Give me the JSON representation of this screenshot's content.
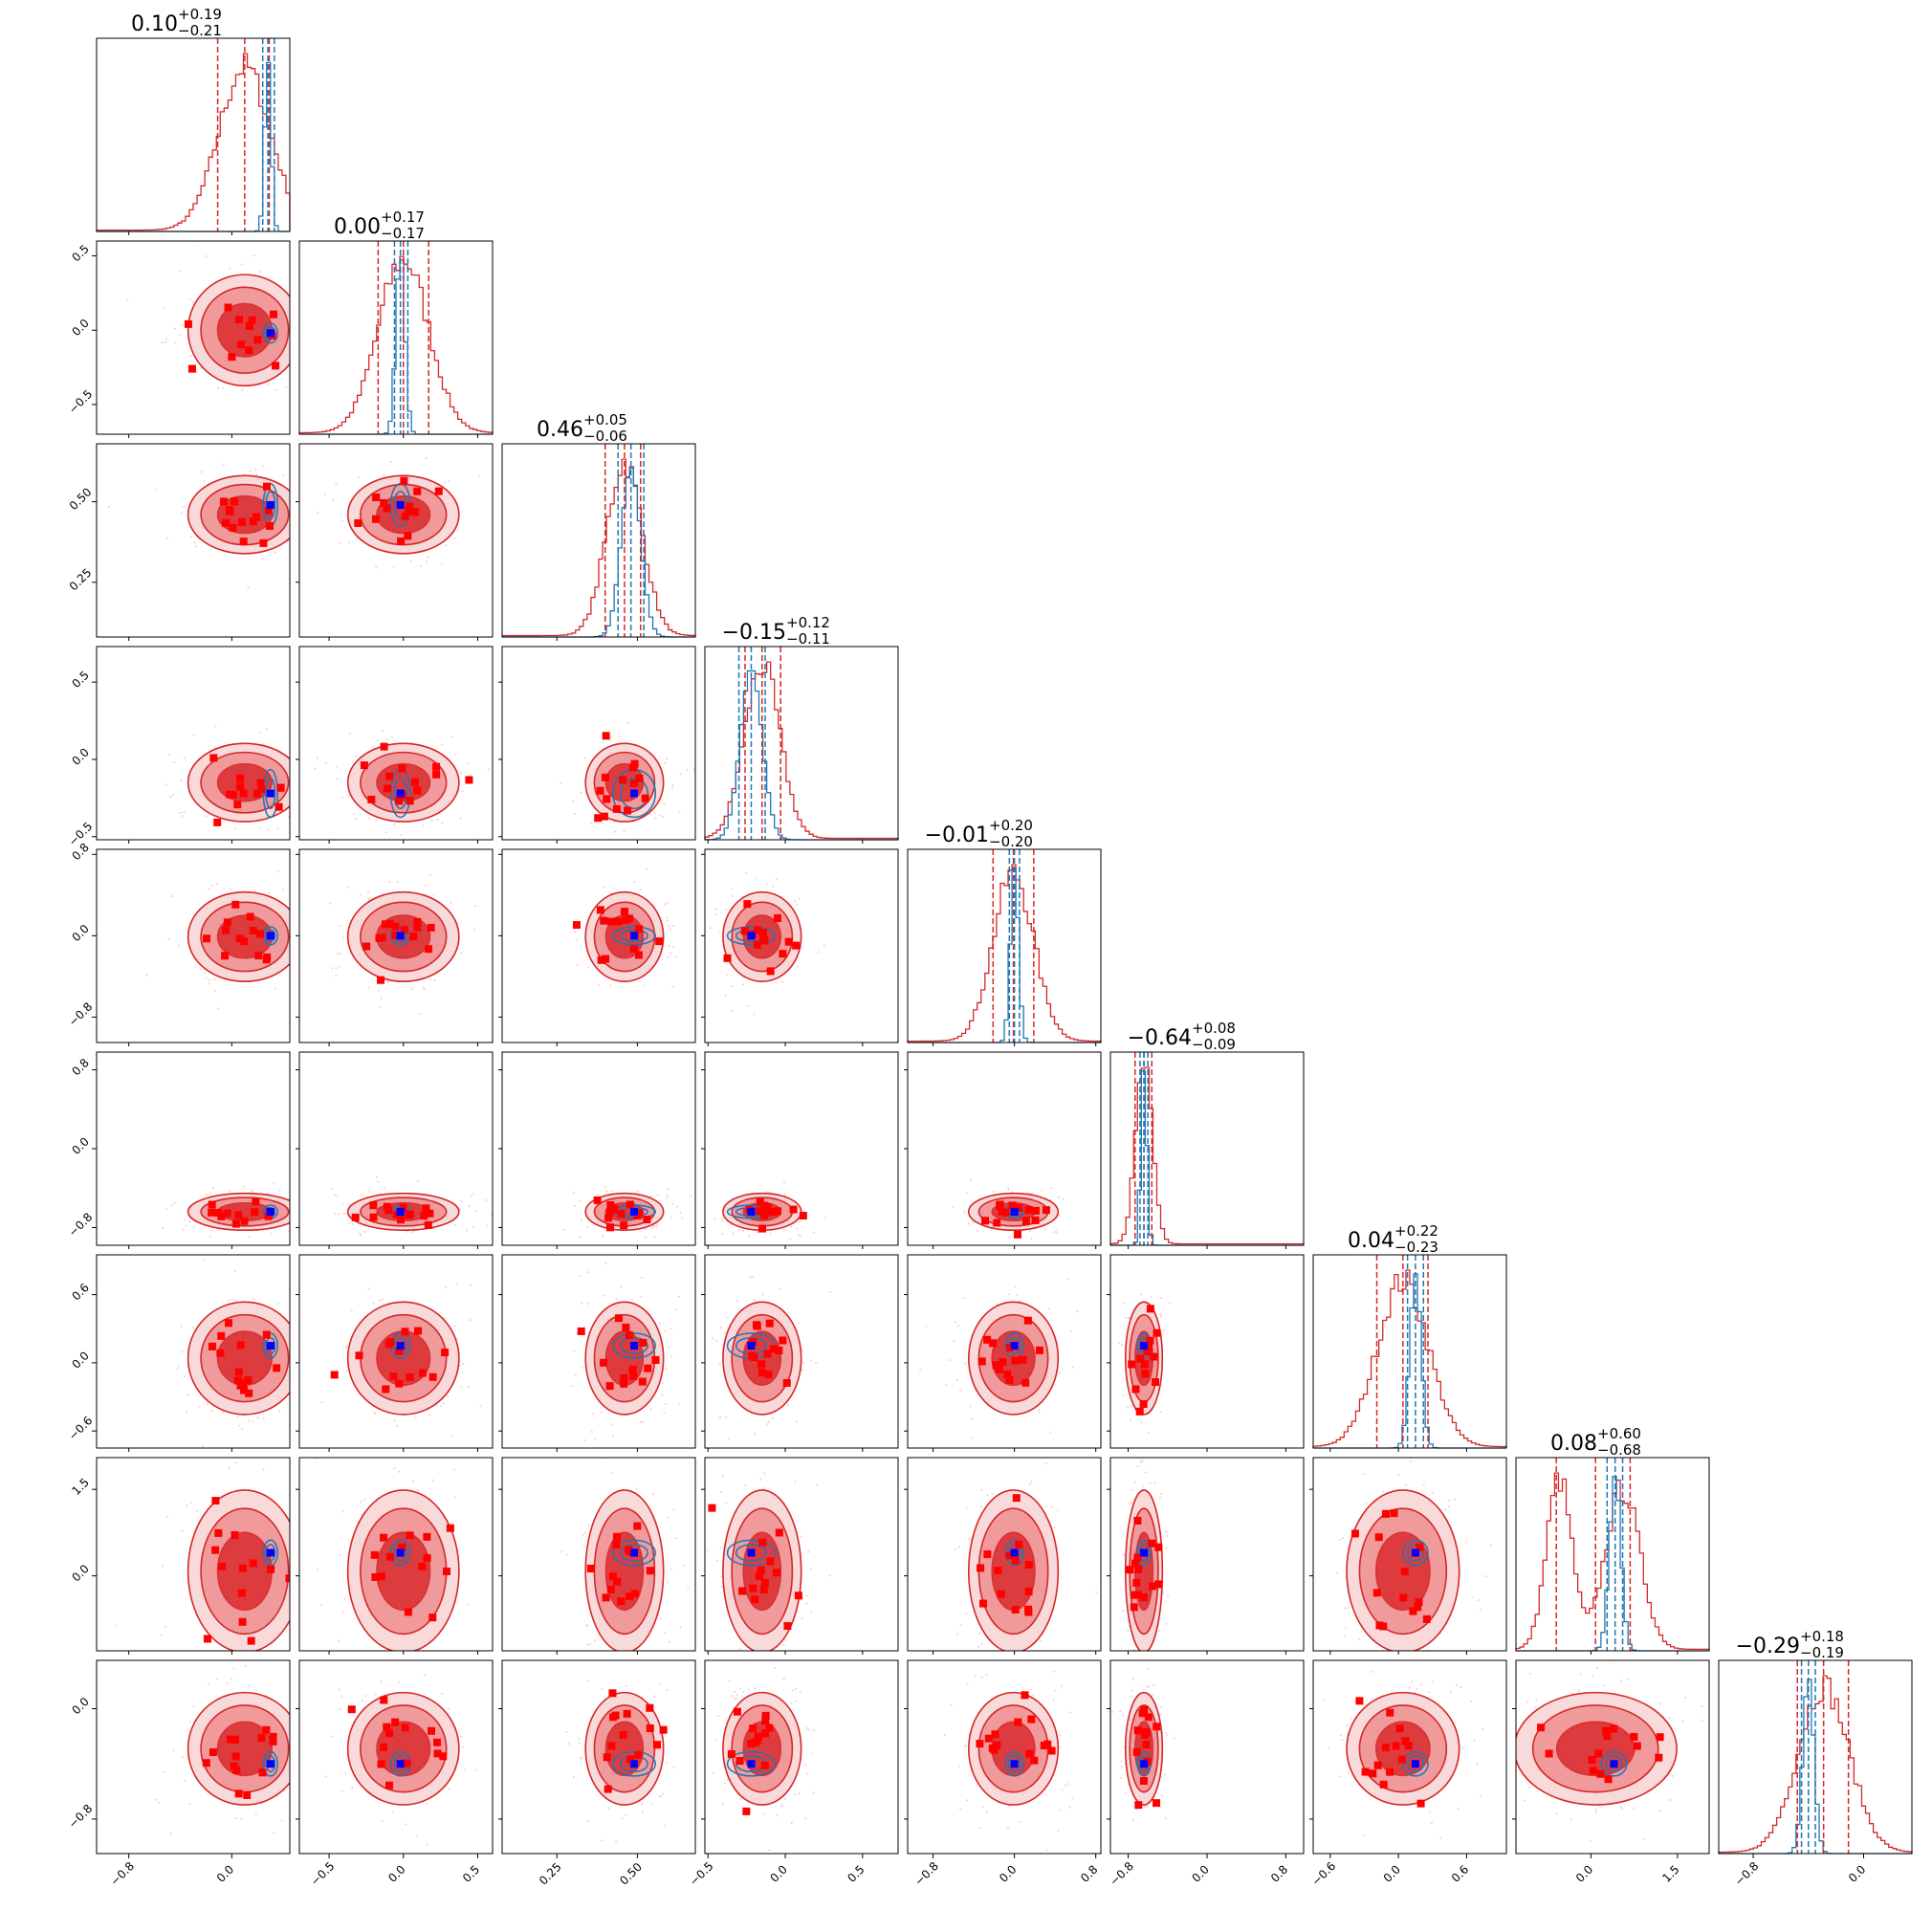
{
  "chart_data": {
    "type": "corner",
    "n_params": 9,
    "grid": false,
    "colors": {
      "primary": "#d62728",
      "secondary": "#1f77b4",
      "marker": "#ff0000",
      "truth": "#0000ff"
    },
    "params": [
      {
        "range": [
          -1.05,
          0.45
        ],
        "ticks": [
          -0.8,
          0.0
        ],
        "tick_labels": [
          "−0.8",
          "0.0"
        ],
        "median": 0.1,
        "plus": 0.19,
        "minus": 0.21,
        "title_main": "0.10",
        "title_plus": "+0.19",
        "title_minus": "−0.21",
        "quantiles": [
          -0.11,
          0.1,
          0.29
        ],
        "secondary_mean": 0.28,
        "secondary_sd": 0.025,
        "secondary_quantiles": [
          0.24,
          0.28,
          0.33
        ],
        "truth": 0.3
      },
      {
        "range": [
          -0.7,
          0.6
        ],
        "ticks": [
          -0.5,
          0.0,
          0.5
        ],
        "tick_labels": [
          "−0.5",
          "0.0",
          "0.5"
        ],
        "median": 0.0,
        "plus": 0.17,
        "minus": 0.17,
        "title_main": "0.00",
        "title_plus": "+0.17",
        "title_minus": "−0.17",
        "quantiles": [
          -0.17,
          0.0,
          0.17
        ],
        "secondary_mean": -0.02,
        "secondary_sd": 0.03,
        "secondary_quantiles": [
          -0.06,
          -0.02,
          0.03
        ],
        "truth": -0.02
      },
      {
        "range": [
          0.08,
          0.68
        ],
        "ticks": [
          0.25,
          0.5
        ],
        "tick_labels": [
          "0.25",
          "0.50"
        ],
        "median": 0.46,
        "plus": 0.05,
        "minus": 0.06,
        "title_main": "0.46",
        "title_plus": "+0.05",
        "title_minus": "−0.06",
        "quantiles": [
          0.4,
          0.46,
          0.51
        ],
        "secondary_mean": 0.48,
        "secondary_sd": 0.03,
        "secondary_quantiles": [
          0.44,
          0.48,
          0.52
        ],
        "truth": 0.49
      },
      {
        "range": [
          -0.52,
          0.73
        ],
        "ticks": [
          -0.5,
          0.0,
          0.5
        ],
        "tick_labels": [
          "−0.5",
          "0.0",
          "0.5"
        ],
        "median": -0.15,
        "plus": 0.12,
        "minus": 0.11,
        "title_main": "−0.15",
        "title_plus": "+0.12",
        "title_minus": "−0.11",
        "quantiles": [
          -0.26,
          -0.15,
          -0.03
        ],
        "secondary_mean": -0.22,
        "secondary_sd": 0.07,
        "secondary_quantiles": [
          -0.3,
          -0.22,
          -0.13
        ],
        "truth": -0.22
      },
      {
        "range": [
          -1.05,
          0.85
        ],
        "ticks": [
          -0.8,
          0.0,
          0.8
        ],
        "tick_labels": [
          "−0.8",
          "0.0",
          "0.8"
        ],
        "median": -0.01,
        "plus": 0.2,
        "minus": 0.2,
        "title_main": "−0.01",
        "title_plus": "+0.20",
        "title_minus": "−0.20",
        "quantiles": [
          -0.21,
          -0.01,
          0.19
        ],
        "secondary_mean": 0.0,
        "secondary_sd": 0.04,
        "secondary_quantiles": [
          -0.05,
          0.0,
          0.05
        ],
        "truth": 0.0
      },
      {
        "range": [
          -0.98,
          0.98
        ],
        "ticks": [
          -0.8,
          0.0,
          0.8
        ],
        "tick_labels": [
          "−0.8",
          "0.0",
          "0.8"
        ],
        "median": -0.64,
        "plus": 0.08,
        "minus": 0.09,
        "title_main": "−0.64",
        "title_plus": "+0.08",
        "title_minus": "−0.09",
        "quantiles": [
          -0.73,
          -0.64,
          -0.56
        ],
        "secondary_mean": -0.64,
        "secondary_sd": 0.03,
        "secondary_quantiles": [
          -0.68,
          -0.64,
          -0.6
        ],
        "truth": -0.64
      },
      {
        "range": [
          -0.75,
          0.95
        ],
        "ticks": [
          -0.6,
          0.0,
          0.6
        ],
        "tick_labels": [
          "−0.6",
          "0.0",
          "0.6"
        ],
        "median": 0.04,
        "plus": 0.22,
        "minus": 0.23,
        "title_main": "0.04",
        "title_plus": "+0.22",
        "title_minus": "−0.23",
        "quantiles": [
          -0.19,
          0.04,
          0.26
        ],
        "secondary_mean": 0.15,
        "secondary_sd": 0.05,
        "secondary_quantiles": [
          0.08,
          0.15,
          0.22
        ],
        "truth": 0.15
      },
      {
        "range": [
          -1.3,
          2.05
        ],
        "ticks": [
          0.0,
          1.5
        ],
        "tick_labels": [
          "0.0",
          "1.5"
        ],
        "median": 0.08,
        "plus": 0.6,
        "minus": 0.68,
        "title_main": "0.08",
        "title_plus": "+0.60",
        "title_minus": "−0.68",
        "quantiles": [
          -0.6,
          0.08,
          0.68
        ],
        "secondary_mean": 0.42,
        "secondary_sd": 0.1,
        "secondary_quantiles": [
          0.28,
          0.42,
          0.55
        ],
        "truth": 0.4
      },
      {
        "range": [
          -1.05,
          0.35
        ],
        "ticks": [
          -0.8,
          0.0
        ],
        "tick_labels": [
          "−0.8",
          "0.0"
        ],
        "median": -0.29,
        "plus": 0.18,
        "minus": 0.19,
        "title_main": "−0.29",
        "title_plus": "+0.18",
        "title_minus": "−0.19",
        "quantiles": [
          -0.48,
          -0.29,
          -0.11
        ],
        "secondary_mean": -0.4,
        "secondary_sd": 0.04,
        "secondary_quantiles": [
          -0.45,
          -0.4,
          -0.35
        ],
        "truth": -0.4
      }
    ]
  }
}
